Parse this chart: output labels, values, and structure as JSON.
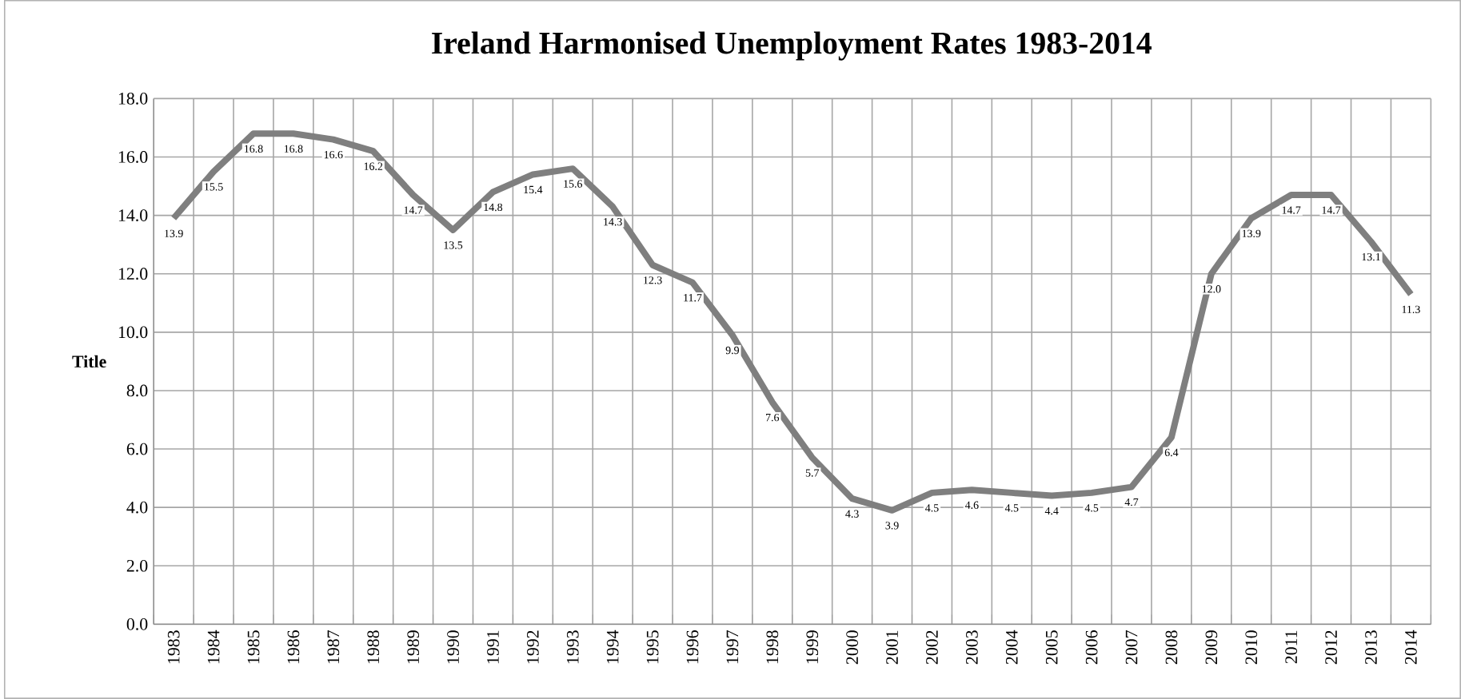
{
  "chart_data": {
    "type": "line",
    "title": "Ireland Harmonised Unemployment Rates 1983-2014",
    "ylabel": "Title",
    "categories": [
      "1983",
      "1984",
      "1985",
      "1986",
      "1987",
      "1988",
      "1989",
      "1990",
      "1991",
      "1992",
      "1993",
      "1994",
      "1995",
      "1996",
      "1997",
      "1998",
      "1999",
      "2000",
      "2001",
      "2002",
      "2003",
      "2004",
      "2005",
      "2006",
      "2007",
      "2008",
      "2009",
      "2010",
      "2011",
      "2012",
      "2013",
      "2014"
    ],
    "values": [
      13.9,
      15.5,
      16.8,
      16.8,
      16.6,
      16.2,
      14.7,
      13.5,
      14.8,
      15.4,
      15.6,
      14.3,
      12.3,
      11.7,
      9.9,
      7.6,
      5.7,
      4.3,
      3.9,
      4.5,
      4.6,
      4.5,
      4.4,
      4.5,
      4.7,
      6.4,
      12.0,
      13.9,
      14.7,
      14.7,
      13.1,
      11.3
    ],
    "value_labels": [
      "13.9",
      "15.5",
      "16.8",
      "16.8",
      "16.6",
      "16.2",
      "14.7",
      "13.5",
      "14.8",
      "15.4",
      "15.6",
      "14.3",
      "12.3",
      "11.7",
      "9.9",
      "7.6",
      "5.7",
      "4.3",
      "3.9",
      "4.5",
      "4.6",
      "4.5",
      "4.4",
      "4.5",
      "4.7",
      "6.4",
      "12.0",
      "13.9",
      "14.7",
      "14.7",
      "13.1",
      "11.3"
    ],
    "color": "#7f7f7f",
    "ylim": [
      0,
      18
    ],
    "yticks": [
      {
        "value": 0,
        "label": "0.0"
      },
      {
        "value": 2,
        "label": "2.0"
      },
      {
        "value": 4,
        "label": "4.0"
      },
      {
        "value": 6,
        "label": "6.0"
      },
      {
        "value": 8,
        "label": "8.0"
      },
      {
        "value": 10,
        "label": "10.0"
      },
      {
        "value": 12,
        "label": "12.0"
      },
      {
        "value": 14,
        "label": "14.0"
      },
      {
        "value": 16,
        "label": "16.0"
      },
      {
        "value": 18,
        "label": "18.0"
      }
    ],
    "grid": true,
    "marker": "none",
    "line_style": "solid"
  }
}
